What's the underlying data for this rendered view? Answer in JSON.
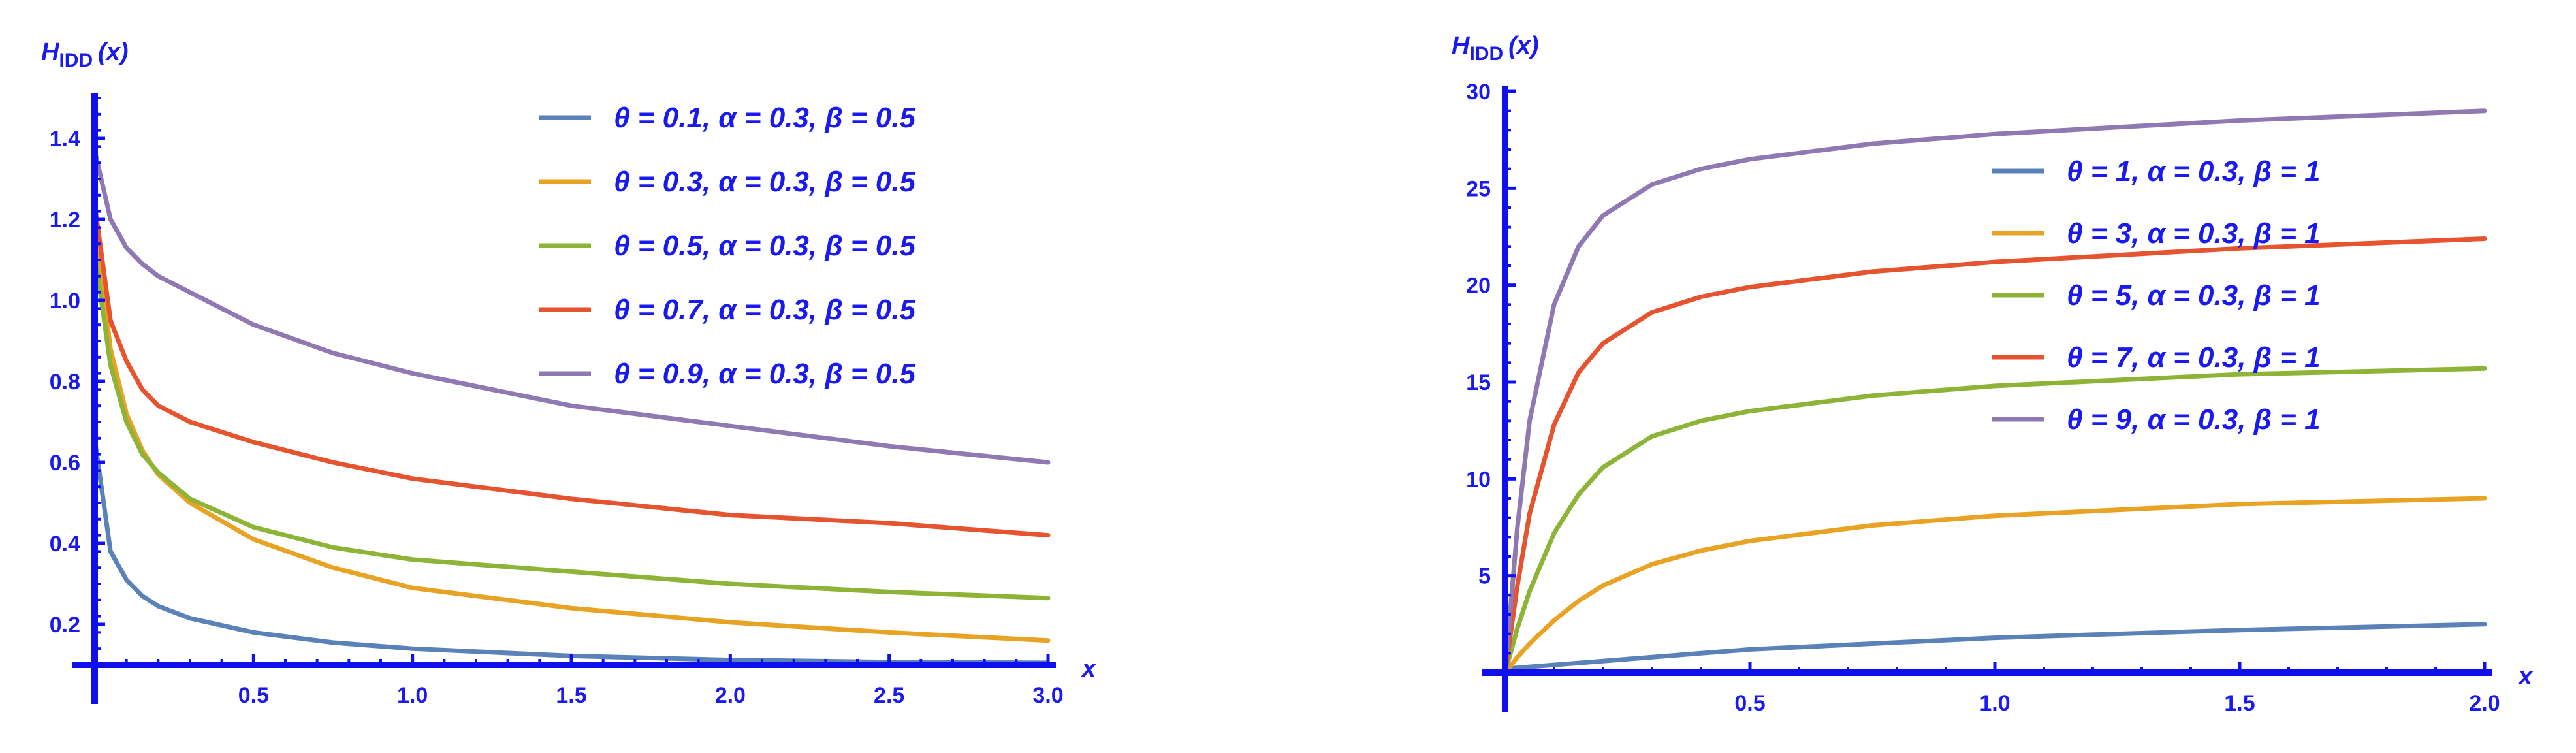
{
  "style": {
    "axis_color": "#1010ee",
    "text_color": "#1a1af0",
    "background": "#ffffff"
  },
  "chart_data": [
    {
      "type": "line",
      "title": "",
      "ylabel_main": "H",
      "ylabel_sub": "IDD",
      "ylabel_suffix": "(x)",
      "xlabel": "x",
      "xlim": [
        0,
        3.0
      ],
      "ylim": [
        0.1,
        1.5
      ],
      "x_ticks": [
        0.5,
        1.0,
        1.5,
        2.0,
        2.5,
        3.0
      ],
      "x_tick_labels": [
        "0.5",
        "1.0",
        "1.5",
        "2.0",
        "2.5",
        "3.0"
      ],
      "y_ticks": [
        0.2,
        0.4,
        0.6,
        0.8,
        1.0,
        1.2,
        1.4
      ],
      "y_tick_labels": [
        "0.2",
        "0.4",
        "0.6",
        "0.8",
        "1.0",
        "1.2",
        "1.4"
      ],
      "grid": false,
      "legend_position": "top-right",
      "x": [
        0.003,
        0.05,
        0.1,
        0.15,
        0.2,
        0.3,
        0.5,
        0.75,
        1.0,
        1.5,
        2.0,
        2.5,
        3.0
      ],
      "series": [
        {
          "name": "θ = 0.1, α = 0.3, β = 0.5",
          "color": "#5b82b8",
          "values": [
            0.64,
            0.38,
            0.31,
            0.27,
            0.245,
            0.215,
            0.18,
            0.155,
            0.14,
            0.122,
            0.112,
            0.107,
            0.105
          ]
        },
        {
          "name": "θ = 0.3, α = 0.3, β = 0.5",
          "color": "#e8a325",
          "values": [
            1.18,
            0.88,
            0.72,
            0.63,
            0.57,
            0.5,
            0.41,
            0.34,
            0.29,
            0.24,
            0.205,
            0.18,
            0.16
          ]
        },
        {
          "name": "θ = 0.5, α = 0.3, β = 0.5",
          "color": "#8db337",
          "values": [
            1.1,
            0.84,
            0.7,
            0.62,
            0.575,
            0.51,
            0.44,
            0.39,
            0.36,
            0.33,
            0.3,
            0.28,
            0.265
          ]
        },
        {
          "name": "θ = 0.7, α = 0.3, β = 0.5",
          "color": "#e5532f",
          "values": [
            1.22,
            0.95,
            0.85,
            0.78,
            0.74,
            0.7,
            0.65,
            0.6,
            0.56,
            0.51,
            0.47,
            0.45,
            0.42
          ]
        },
        {
          "name": "θ = 0.9, α = 0.3, β = 0.5",
          "color": "#9079b2",
          "values": [
            1.36,
            1.2,
            1.13,
            1.09,
            1.06,
            1.02,
            0.94,
            0.87,
            0.82,
            0.74,
            0.69,
            0.64,
            0.6
          ]
        }
      ]
    },
    {
      "type": "line",
      "title": "",
      "ylabel_main": "H",
      "ylabel_sub": "IDD",
      "ylabel_suffix": "(x)",
      "xlabel": "x",
      "xlim": [
        0,
        2.0
      ],
      "ylim": [
        0,
        30
      ],
      "x_ticks": [
        0.5,
        1.0,
        1.5,
        2.0
      ],
      "x_tick_labels": [
        "0.5",
        "1.0",
        "1.5",
        "2.0"
      ],
      "y_ticks": [
        5,
        10,
        15,
        20,
        25,
        30
      ],
      "y_tick_labels": [
        "5",
        "10",
        "15",
        "20",
        "25",
        "30"
      ],
      "grid": false,
      "legend_position": "upper-right",
      "x": [
        0,
        0.025,
        0.05,
        0.1,
        0.15,
        0.2,
        0.3,
        0.4,
        0.5,
        0.75,
        1.0,
        1.5,
        2.0
      ],
      "series": [
        {
          "name": "θ = 1, α = 0.3, β = 1",
          "color": "#5b82b8",
          "values": [
            0.2,
            0.25,
            0.3,
            0.4,
            0.5,
            0.6,
            0.8,
            1.0,
            1.2,
            1.5,
            1.8,
            2.2,
            2.5
          ]
        },
        {
          "name": "θ = 3, α = 0.3, β = 1",
          "color": "#e8a325",
          "values": [
            0,
            0.8,
            1.5,
            2.7,
            3.7,
            4.5,
            5.6,
            6.3,
            6.8,
            7.6,
            8.1,
            8.7,
            9.0
          ]
        },
        {
          "name": "θ = 5, α = 0.3, β = 1",
          "color": "#8db337",
          "values": [
            0,
            2.3,
            4.2,
            7.2,
            9.2,
            10.6,
            12.2,
            13.0,
            13.5,
            14.3,
            14.8,
            15.4,
            15.7
          ]
        },
        {
          "name": "θ = 7, α = 0.3, β = 1",
          "color": "#e5532f",
          "values": [
            0,
            4.5,
            8.2,
            12.8,
            15.5,
            17.0,
            18.6,
            19.4,
            19.9,
            20.7,
            21.2,
            21.9,
            22.4
          ]
        },
        {
          "name": "θ = 9, α = 0.3, β = 1",
          "color": "#9079b2",
          "values": [
            0,
            7.5,
            13.0,
            19.0,
            22.0,
            23.6,
            25.2,
            26.0,
            26.5,
            27.3,
            27.8,
            28.5,
            29.0
          ]
        }
      ]
    }
  ]
}
